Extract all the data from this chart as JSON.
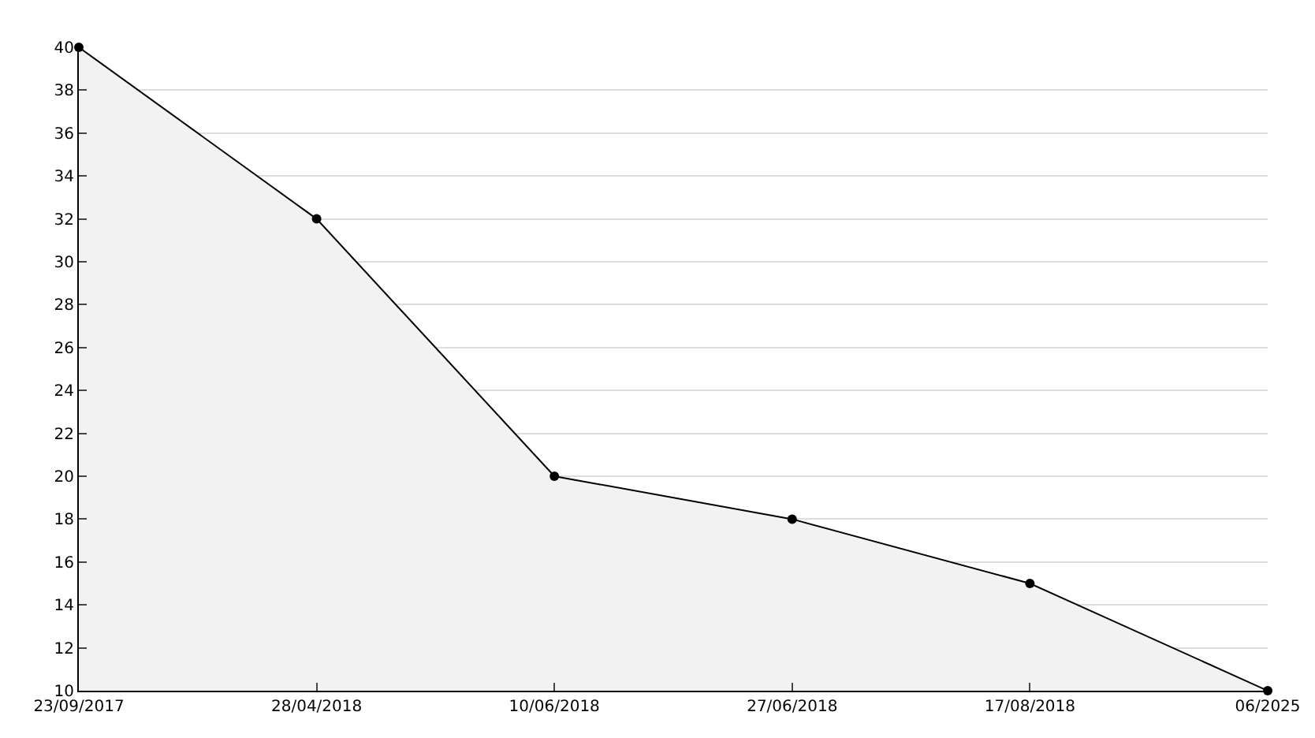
{
  "chart_data": {
    "type": "area",
    "categories": [
      "23/09/2017",
      "28/04/2018",
      "10/06/2018",
      "27/06/2018",
      "17/08/2018",
      "06/2025"
    ],
    "series": [
      {
        "color": "#000000",
        "values": [
          40,
          32,
          20,
          18,
          15,
          10
        ]
      }
    ],
    "ylim": [
      10,
      40
    ],
    "yticks": [
      10,
      12,
      14,
      16,
      18,
      20,
      22,
      24,
      26,
      28,
      30,
      32,
      34,
      36,
      38,
      40
    ],
    "grid": "y",
    "marker": "circle",
    "line_style": "solid"
  }
}
